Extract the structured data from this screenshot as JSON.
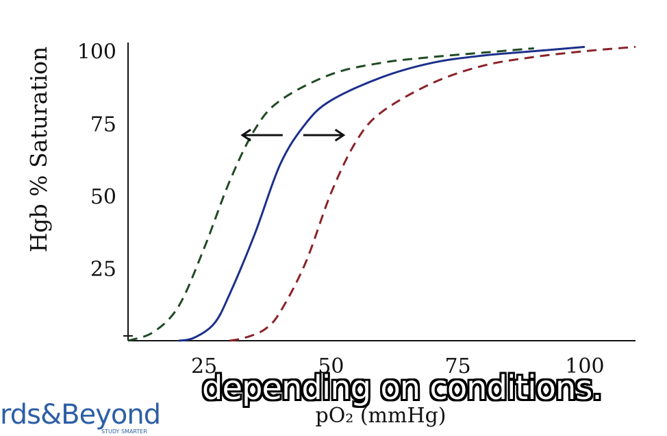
{
  "chart_data": {
    "type": "line",
    "xlabel": "pO₂ (mmHg)",
    "ylabel": "Hgb % Saturation",
    "x_ticks": [
      25,
      50,
      75,
      100
    ],
    "y_ticks": [
      25,
      50,
      75,
      100
    ],
    "xlim": [
      10,
      110
    ],
    "ylim": [
      0,
      103
    ],
    "grid": false,
    "legend": "none",
    "series": [
      {
        "color": "#1f4a24",
        "dash": true,
        "x": [
          10,
          15,
          20,
          25,
          30,
          35,
          40,
          50,
          60,
          70,
          80,
          90
        ],
        "y": [
          0,
          3,
          12,
          32,
          55,
          73,
          83,
          92,
          96,
          98,
          99.5,
          101
        ]
      },
      {
        "color": "#1c2f8c",
        "dash": false,
        "x": [
          20,
          23,
          27,
          30,
          35,
          40,
          45,
          50,
          60,
          70,
          80,
          90,
          100
        ],
        "y": [
          0,
          1,
          6,
          16,
          37,
          61,
          75,
          83,
          91,
          96,
          98.5,
          100,
          101.5
        ]
      },
      {
        "color": "#8a2328",
        "dash": true,
        "x": [
          30,
          33,
          37,
          40,
          45,
          50,
          55,
          60,
          70,
          80,
          90,
          100,
          110
        ],
        "y": [
          0,
          1,
          4,
          10,
          27,
          51,
          69,
          79,
          89,
          95,
          98,
          100,
          101.5
        ]
      }
    ],
    "annotations": {
      "double_arrow_y": 71,
      "left_x": 32,
      "right_x": 53
    }
  },
  "overlay": {
    "caption": "depending on conditions.",
    "logo_text": "rds&Beyond",
    "logo_sub": "STUDY SMARTER"
  }
}
